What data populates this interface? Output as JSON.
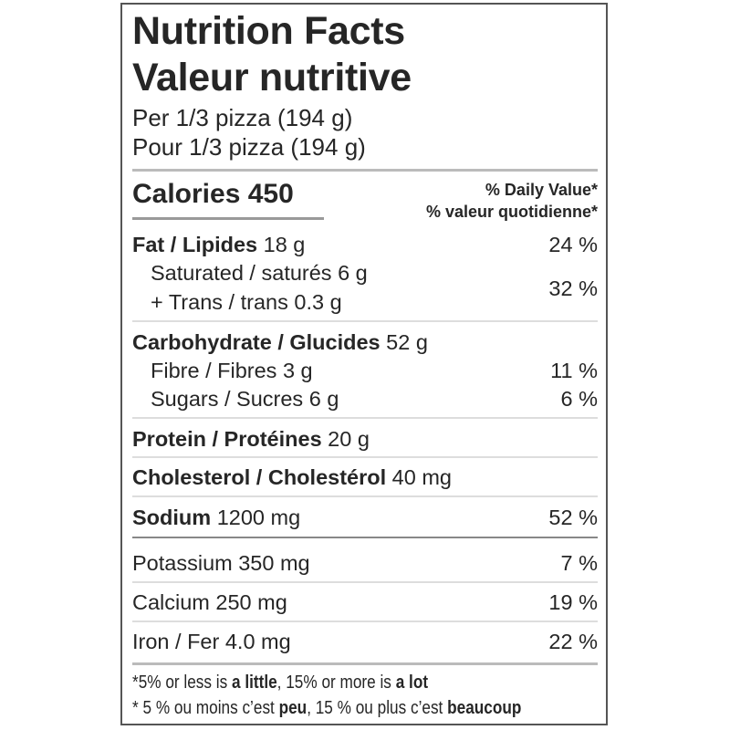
{
  "title_en": "Nutrition Facts",
  "title_fr": "Valeur nutritive",
  "serving_en": "Per 1/3 pizza (194 g)",
  "serving_fr": "Pour 1/3 pizza (194 g)",
  "calories_label": "Calories",
  "calories_value": "450",
  "dv_en": "% Daily Value*",
  "dv_fr": "% valeur quotidienne*",
  "nutrients": {
    "fat": {
      "label": "Fat / Lipides",
      "amount": "18 g",
      "dv": "24 %"
    },
    "saturated": {
      "label": "Saturated / saturés 6 g"
    },
    "trans": {
      "label": "+ Trans / trans 0.3 g"
    },
    "sat_trans_dv": "32 %",
    "carb": {
      "label": "Carbohydrate / Glucides",
      "amount": "52 g"
    },
    "fibre": {
      "label": "Fibre / Fibres 3 g",
      "dv": "11 %"
    },
    "sugars": {
      "label": "Sugars / Sucres 6 g",
      "dv": "6 %"
    },
    "protein": {
      "label": "Protein / Protéines",
      "amount": "20 g"
    },
    "cholesterol": {
      "label": "Cholesterol / Cholestérol",
      "amount": "40 mg"
    },
    "sodium": {
      "label": "Sodium",
      "amount": "1200 mg",
      "dv": "52 %"
    },
    "potassium": {
      "label": "Potassium 350 mg",
      "dv": "7 %"
    },
    "calcium": {
      "label": "Calcium 250 mg",
      "dv": "19 %"
    },
    "iron": {
      "label": "Iron / Fer 4.0 mg",
      "dv": "22 %"
    }
  },
  "footnote_en": {
    "p1": "*5% or less is ",
    "b1": "a little",
    "p2": ", 15% or more is ",
    "b2": "a lot"
  },
  "footnote_fr": {
    "p1": "* 5 % ou moins c’est ",
    "b1": "peu",
    "p2": ", 15 % ou plus c’est ",
    "b2": "beaucoup"
  }
}
